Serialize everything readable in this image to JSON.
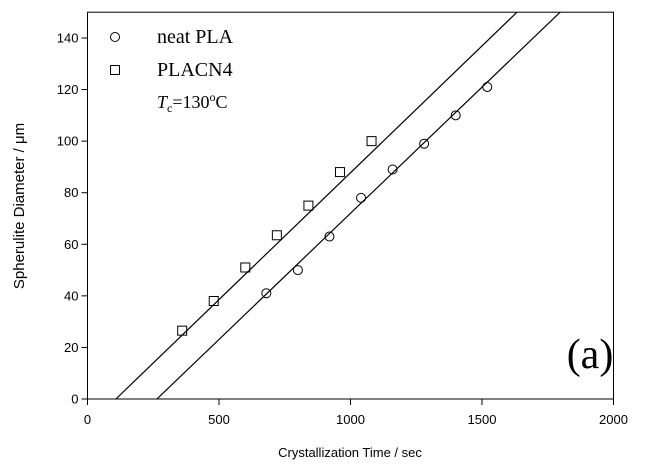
{
  "chart_data": {
    "type": "scatter",
    "xlabel": "Crystallization Time / sec",
    "ylabel": "Spherulite Diameter / μm",
    "xlim": [
      0,
      2000
    ],
    "xticks": [
      0,
      500,
      1000,
      1500,
      2000
    ],
    "ylim": [
      0,
      150
    ],
    "yticks": [
      0,
      20,
      40,
      60,
      80,
      100,
      120,
      140
    ],
    "series": [
      {
        "name": "neat PLA",
        "color": "#000000",
        "marker": "circle",
        "x": [
          680,
          800,
          920,
          1040,
          1160,
          1280,
          1400,
          1520
        ],
        "values": [
          41,
          50,
          63,
          78,
          89,
          99,
          110,
          121
        ],
        "fit_x": [
          264,
          1797
        ],
        "fit_y": [
          0,
          150
        ]
      },
      {
        "name": "PLACN4",
        "color": "#000000",
        "marker": "square",
        "x": [
          360,
          480,
          600,
          720,
          840,
          960,
          1080
        ],
        "values": [
          26.5,
          38,
          51,
          63.5,
          75,
          88,
          100
        ],
        "fit_x": [
          108,
          1633
        ],
        "fit_y": [
          0,
          150
        ]
      }
    ],
    "annotation": [
      "T",
      "c",
      "=130",
      "o",
      "C"
    ],
    "panel_label": "(a)"
  }
}
